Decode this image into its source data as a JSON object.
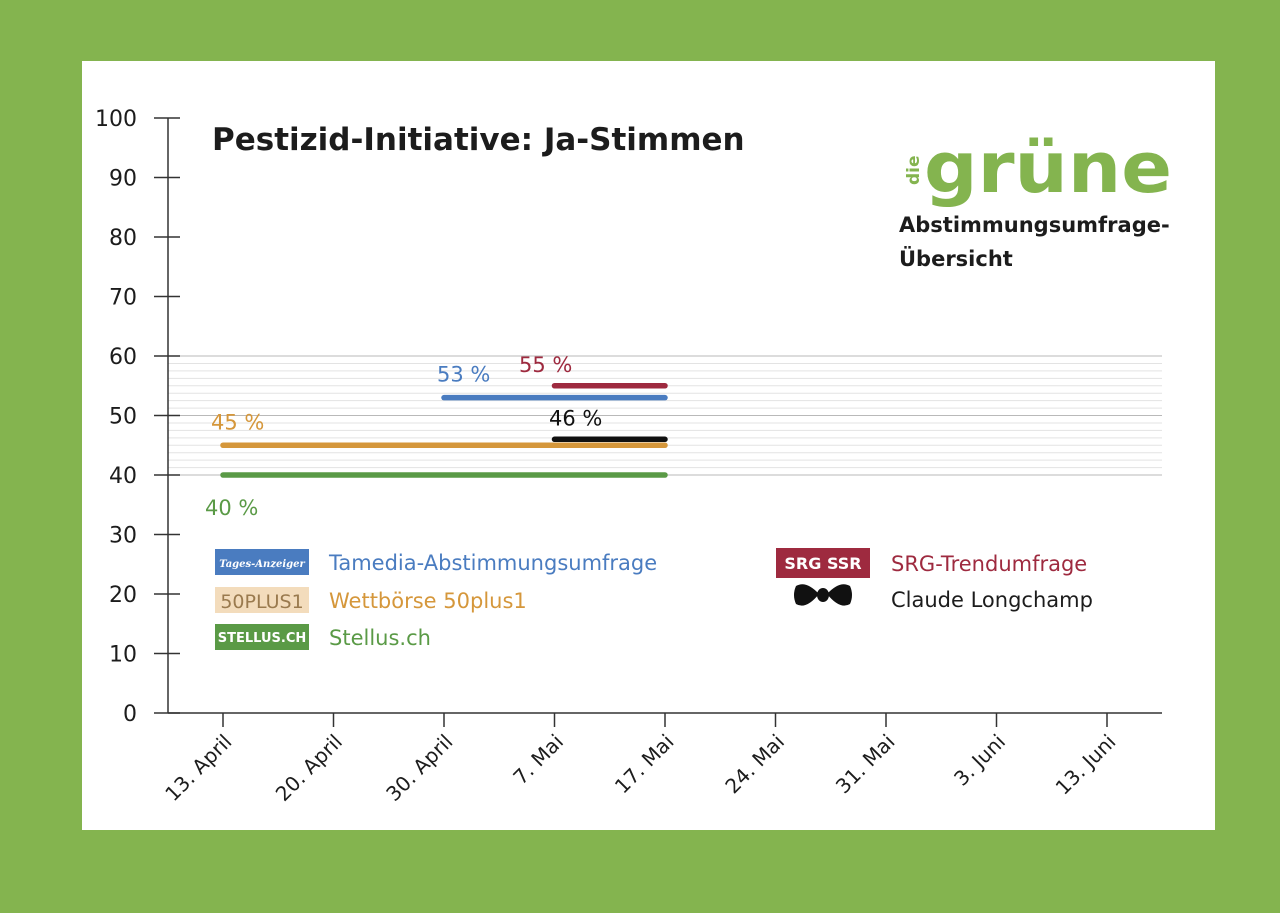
{
  "chart_data": {
    "type": "line",
    "title": "Pestizid-Initiative: Ja-Stimmen",
    "ylim": [
      0,
      100
    ],
    "y_ticks": [
      "0",
      "10",
      "20",
      "30",
      "40",
      "50",
      "60",
      "70",
      "80",
      "90",
      "100"
    ],
    "x_ticks": [
      "13. April",
      "20. April",
      "30. April",
      "7. Mai",
      "17. Mai",
      "24. Mai",
      "31. Mai",
      "3. Juni",
      "13. Juni"
    ],
    "grid_band": [
      40,
      60
    ],
    "series": [
      {
        "name": "Tamedia-Abstimmungsumfrage",
        "badge": "Tages-Anzeiger",
        "color": "#4a7cc0",
        "start": "30. April",
        "end": "17. Mai",
        "value": 53,
        "label": "53 %"
      },
      {
        "name": "SRG-Trendumfrage",
        "badge": "SRG SSR",
        "color": "#9e2a3f",
        "start": "7. Mai",
        "end": "17. Mai",
        "value": 55,
        "label": "55 %"
      },
      {
        "name": "Claude Longchamp",
        "badge": "bow-tie-icon",
        "color": "#111111",
        "start": "7. Mai",
        "end": "17. Mai",
        "value": 46,
        "label": "46 %"
      },
      {
        "name": "Wettbörse 50plus1",
        "badge": "50PLUS1",
        "color": "#d5973b",
        "start": "13. April",
        "end": "17. Mai",
        "value": 45,
        "label": "45 %"
      },
      {
        "name": "Stellus.ch",
        "badge": "STELLUS.CH",
        "color": "#5a9a46",
        "start": "13. April",
        "end": "17. Mai",
        "value": 40,
        "label": "40 %"
      }
    ]
  },
  "brand": {
    "prefix": "die",
    "name": "grüne",
    "subtitle_line1": "Abstimmungsumfrage-",
    "subtitle_line2": "Übersicht",
    "color": "#84b44f"
  }
}
